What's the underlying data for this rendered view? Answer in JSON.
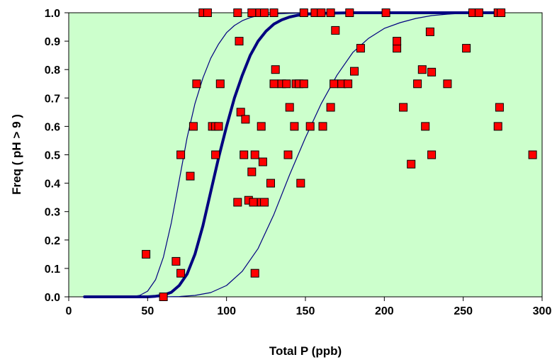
{
  "chart_data": {
    "type": "scatter",
    "xlabel": "Total P (ppb)",
    "ylabel": "Freq ( pH > 9 )",
    "xlim": [
      0,
      300
    ],
    "ylim": [
      0,
      1
    ],
    "x_ticks": [
      "0",
      "50",
      "100",
      "150",
      "200",
      "250",
      "300"
    ],
    "y_ticks": [
      "0.0",
      "0.1",
      "0.2",
      "0.3",
      "0.4",
      "0.5",
      "0.6",
      "0.7",
      "0.8",
      "0.9",
      "1.0"
    ],
    "grid": false,
    "legend": "none",
    "colors": {
      "plot_background": "#ccffcc",
      "marker_fill": "#ff0000",
      "marker_stroke": "#000000",
      "curve": "#000080"
    },
    "points": [
      [
        49,
        0.15
      ],
      [
        60,
        0.0
      ],
      [
        68,
        0.125
      ],
      [
        71,
        0.083
      ],
      [
        71,
        0.5
      ],
      [
        77,
        0.425
      ],
      [
        79,
        0.6
      ],
      [
        81,
        0.75
      ],
      [
        85,
        1.0
      ],
      [
        88,
        1.0
      ],
      [
        91,
        0.6
      ],
      [
        93,
        0.5
      ],
      [
        93,
        0.6
      ],
      [
        95,
        0.6
      ],
      [
        96,
        0.75
      ],
      [
        107,
        0.333
      ],
      [
        108,
        0.9
      ],
      [
        109,
        0.65
      ],
      [
        111,
        0.5
      ],
      [
        112,
        0.625
      ],
      [
        107,
        1.0
      ],
      [
        114,
        0.34
      ],
      [
        116,
        0.44
      ],
      [
        117,
        0.333
      ],
      [
        118,
        0.083
      ],
      [
        118,
        0.5
      ],
      [
        116,
        1.0
      ],
      [
        121,
        1.0
      ],
      [
        122,
        0.6
      ],
      [
        122,
        0.333
      ],
      [
        123,
        0.475
      ],
      [
        124,
        0.333
      ],
      [
        124,
        1.0
      ],
      [
        128,
        0.4
      ],
      [
        130,
        0.75
      ],
      [
        130,
        1.0
      ],
      [
        131,
        0.8
      ],
      [
        135,
        0.75
      ],
      [
        138,
        0.75
      ],
      [
        139,
        0.5
      ],
      [
        140,
        0.667
      ],
      [
        143,
        0.6
      ],
      [
        144,
        0.75
      ],
      [
        146,
        0.75
      ],
      [
        147,
        0.4
      ],
      [
        149,
        0.75
      ],
      [
        149,
        1.0
      ],
      [
        153,
        0.6
      ],
      [
        156,
        1.0
      ],
      [
        160,
        1.0
      ],
      [
        161,
        0.6
      ],
      [
        166,
        0.667
      ],
      [
        166,
        1.0
      ],
      [
        168,
        0.75
      ],
      [
        169,
        0.938
      ],
      [
        173,
        0.75
      ],
      [
        177,
        0.75
      ],
      [
        178,
        1.0
      ],
      [
        181,
        0.794
      ],
      [
        185,
        0.875
      ],
      [
        201,
        1.0
      ],
      [
        208,
        0.875
      ],
      [
        208,
        0.9
      ],
      [
        212,
        0.667
      ],
      [
        217,
        0.467
      ],
      [
        221,
        0.75
      ],
      [
        224,
        0.8
      ],
      [
        226,
        0.6
      ],
      [
        229,
        0.933
      ],
      [
        230,
        0.791
      ],
      [
        230,
        0.5
      ],
      [
        240,
        0.75
      ],
      [
        252,
        0.875
      ],
      [
        256,
        1.0
      ],
      [
        260,
        1.0
      ],
      [
        272,
        1.0
      ],
      [
        272,
        0.6
      ],
      [
        273,
        0.667
      ],
      [
        274,
        1.0
      ],
      [
        294,
        0.5
      ]
    ],
    "curves": [
      {
        "style": "thin",
        "x": [
          10,
          30,
          40,
          45,
          50,
          55,
          60,
          65,
          70,
          75,
          80,
          85,
          90,
          95,
          100,
          105,
          110,
          115,
          120,
          130,
          140,
          150,
          160,
          170,
          180,
          200,
          230,
          260,
          272
        ],
        "y": [
          0,
          0,
          0.001,
          0.005,
          0.02,
          0.06,
          0.14,
          0.26,
          0.41,
          0.56,
          0.68,
          0.77,
          0.84,
          0.89,
          0.93,
          0.955,
          0.972,
          0.983,
          0.99,
          0.996,
          0.998,
          0.999,
          1,
          1,
          1,
          1,
          1,
          1,
          1
        ]
      },
      {
        "style": "bold",
        "x": [
          10,
          40,
          50,
          55,
          60,
          65,
          70,
          75,
          80,
          85,
          90,
          95,
          100,
          105,
          110,
          115,
          120,
          125,
          130,
          135,
          140,
          145,
          150,
          160,
          170,
          180,
          200,
          230,
          260,
          272
        ],
        "y": [
          0,
          0,
          0,
          0.002,
          0.006,
          0.016,
          0.04,
          0.08,
          0.15,
          0.25,
          0.37,
          0.49,
          0.6,
          0.7,
          0.78,
          0.85,
          0.9,
          0.935,
          0.96,
          0.975,
          0.985,
          0.991,
          0.995,
          0.998,
          0.999,
          1,
          1,
          1,
          1,
          1
        ]
      },
      {
        "style": "thin",
        "x": [
          10,
          60,
          70,
          80,
          90,
          100,
          110,
          120,
          130,
          140,
          150,
          160,
          170,
          180,
          190,
          200,
          210,
          220,
          230,
          240,
          250,
          260,
          272
        ],
        "y": [
          0,
          0,
          0.001,
          0.005,
          0.015,
          0.04,
          0.09,
          0.17,
          0.29,
          0.43,
          0.56,
          0.68,
          0.78,
          0.86,
          0.91,
          0.945,
          0.965,
          0.98,
          0.99,
          0.995,
          0.998,
          0.999,
          1
        ]
      }
    ]
  }
}
